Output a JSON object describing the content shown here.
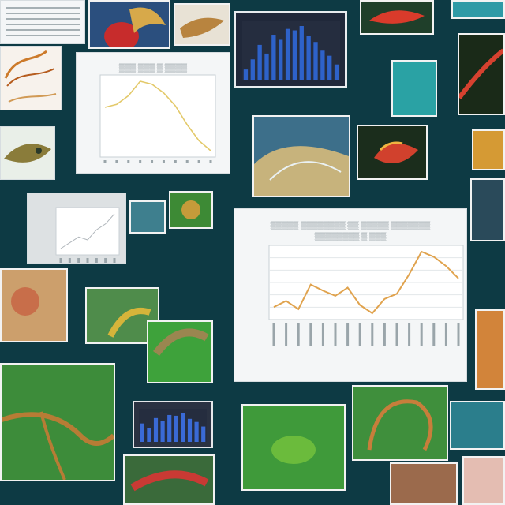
{
  "collage": {
    "panels": [
      "scientific-illustrations",
      "bar-chart-panel",
      "line-chart-panel",
      "photo-panels"
    ]
  },
  "chart_data": [
    {
      "type": "line",
      "title": "",
      "x": [
        1,
        2,
        3,
        4,
        5,
        6,
        7,
        8,
        9,
        10
      ],
      "series": [
        {
          "values": [
            54,
            56,
            62,
            72,
            70,
            64,
            55,
            42,
            31,
            24
          ]
        }
      ],
      "xlabel": "",
      "ylabel": "",
      "color": "#e3c96a"
    },
    {
      "type": "line",
      "title": "",
      "x": [
        "1",
        "2",
        "3",
        "4",
        "5",
        "6",
        "7",
        "8",
        "9",
        "10",
        "11",
        "12",
        "13",
        "14",
        "15",
        "16"
      ],
      "series": [
        {
          "values": [
            20,
            26,
            18,
            42,
            36,
            31,
            39,
            22,
            14,
            28,
            33,
            52,
            74,
            69,
            60,
            48
          ]
        }
      ],
      "xlabel": "",
      "ylabel": "",
      "color": "#e0a34e"
    },
    {
      "type": "bar",
      "title": "",
      "categories": [
        "1",
        "2",
        "3",
        "4",
        "5",
        "6",
        "7",
        "8",
        "9",
        "10",
        "11",
        "12",
        "13",
        "14"
      ],
      "values": [
        14,
        28,
        48,
        36,
        62,
        55,
        70,
        68,
        74,
        60,
        52,
        40,
        33,
        21
      ],
      "color": "#2e62c9"
    },
    {
      "type": "line",
      "title": "",
      "x": [
        1,
        2,
        3,
        4,
        5,
        6,
        7
      ],
      "series": [
        {
          "values": [
            10,
            18,
            26,
            22,
            36,
            44,
            58
          ]
        }
      ],
      "color": "#b0b6bb"
    }
  ],
  "colors": {
    "background": "#0d3a44",
    "paper": "#f4f6f7",
    "accent_orange": "#e0a34e",
    "accent_yellow": "#e3c96a",
    "accent_blue": "#2e62c9"
  }
}
